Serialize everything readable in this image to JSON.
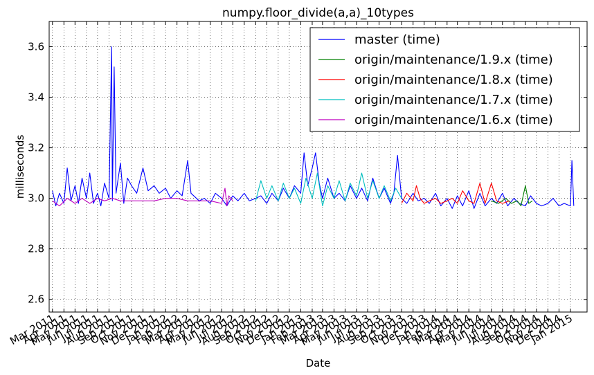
{
  "chart_data": {
    "type": "line",
    "title": "numpy.floor_divide(a,a)_10types",
    "xlabel": "Date",
    "ylabel": "milliseconds",
    "ylim": [
      2.55,
      3.7
    ],
    "yticks": [
      2.6,
      2.8,
      3.0,
      3.2,
      3.4,
      3.6
    ],
    "ytick_labels": [
      "2.6",
      "2.8",
      "3.0",
      "3.2",
      "3.4",
      "3.6"
    ],
    "xlim": [
      "2011-02-20",
      "2015-02-15"
    ],
    "xticks": [
      "2011-03-01",
      "2011-04-01",
      "2011-05-01",
      "2011-06-01",
      "2011-07-01",
      "2011-08-01",
      "2011-09-01",
      "2011-10-01",
      "2011-11-01",
      "2011-12-01",
      "2012-01-01",
      "2012-02-01",
      "2012-03-01",
      "2012-04-01",
      "2012-05-01",
      "2012-06-01",
      "2012-07-01",
      "2012-08-01",
      "2012-09-01",
      "2012-10-01",
      "2012-11-01",
      "2012-12-01",
      "2013-01-01",
      "2013-02-01",
      "2013-03-01",
      "2013-04-01",
      "2013-05-01",
      "2013-06-01",
      "2013-07-01",
      "2013-08-01",
      "2013-09-01",
      "2013-10-01",
      "2013-11-01",
      "2013-12-01",
      "2014-01-01",
      "2014-02-01",
      "2014-03-01",
      "2014-04-01",
      "2014-05-01",
      "2014-06-01",
      "2014-07-01",
      "2014-08-01",
      "2014-09-01",
      "2014-10-01",
      "2014-11-01",
      "2014-12-01",
      "2015-01-01"
    ],
    "xtick_labels": [
      "Mar 2011",
      "Apr 2011",
      "May 2011",
      "Jun 2011",
      "Jul 2011",
      "Aug 2011",
      "Sep 2011",
      "Oct 2011",
      "Nov 2011",
      "Dec 2011",
      "Jan 2012",
      "Feb 2012",
      "Mar 2012",
      "Apr 2012",
      "May 2012",
      "Jun 2012",
      "Jul 2012",
      "Aug 2012",
      "Sep 2012",
      "Oct 2012",
      "Nov 2012",
      "Dec 2012",
      "Jan 2013",
      "Feb 2013",
      "Mar 2013",
      "Apr 2013",
      "May 2013",
      "Jun 2013",
      "Jul 2013",
      "Aug 2013",
      "Sep 2013",
      "Oct 2013",
      "Nov 2013",
      "Dec 2013",
      "Jan 2014",
      "Feb 2014",
      "Mar 2014",
      "Apr 2014",
      "May 2014",
      "Jun 2014",
      "Jul 2014",
      "Aug 2014",
      "Sep 2014",
      "Oct 2014",
      "Nov 2014",
      "Dec 2014",
      "Jan 2015"
    ],
    "grid": true,
    "legend_position": "top-right",
    "series": [
      {
        "name": "master (time)",
        "color": "#0000ff",
        "x": [
          "2011-03-01",
          "2011-03-10",
          "2011-03-20",
          "2011-04-01",
          "2011-04-10",
          "2011-04-20",
          "2011-05-01",
          "2011-05-10",
          "2011-05-20",
          "2011-06-01",
          "2011-06-10",
          "2011-06-20",
          "2011-07-01",
          "2011-07-10",
          "2011-07-20",
          "2011-08-01",
          "2011-08-08",
          "2011-08-10",
          "2011-08-15",
          "2011-08-20",
          "2011-09-01",
          "2011-09-10",
          "2011-09-20",
          "2011-10-01",
          "2011-10-15",
          "2011-11-01",
          "2011-11-15",
          "2011-12-01",
          "2011-12-15",
          "2012-01-01",
          "2012-01-15",
          "2012-02-01",
          "2012-02-15",
          "2012-03-01",
          "2012-03-10",
          "2012-04-01",
          "2012-04-15",
          "2012-05-01",
          "2012-05-15",
          "2012-06-01",
          "2012-06-15",
          "2012-07-01",
          "2012-07-15",
          "2012-08-01",
          "2012-08-15",
          "2012-09-01",
          "2012-09-15",
          "2012-10-01",
          "2012-10-15",
          "2012-11-01",
          "2012-11-15",
          "2012-12-01",
          "2012-12-15",
          "2013-01-01",
          "2013-01-10",
          "2013-01-20",
          "2013-02-01",
          "2013-02-10",
          "2013-02-20",
          "2013-03-01",
          "2013-03-15",
          "2013-04-01",
          "2013-04-15",
          "2013-05-01",
          "2013-05-15",
          "2013-06-01",
          "2013-06-15",
          "2013-07-01",
          "2013-07-15",
          "2013-08-01",
          "2013-08-15",
          "2013-09-01",
          "2013-09-10",
          "2013-09-20",
          "2013-10-01",
          "2013-10-15",
          "2013-11-01",
          "2013-11-15",
          "2013-12-01",
          "2013-12-15",
          "2014-01-01",
          "2014-01-15",
          "2014-02-01",
          "2014-02-15",
          "2014-03-01",
          "2014-03-15",
          "2014-04-01",
          "2014-04-15",
          "2014-05-01",
          "2014-05-15",
          "2014-06-01",
          "2014-06-15",
          "2014-07-01",
          "2014-07-15",
          "2014-08-01",
          "2014-08-15",
          "2014-09-01",
          "2014-09-15",
          "2014-10-01",
          "2014-10-15",
          "2014-11-01",
          "2014-11-15",
          "2014-12-01",
          "2014-12-15",
          "2015-01-01",
          "2015-01-05",
          "2015-01-10"
        ],
        "y": [
          3.03,
          2.97,
          3.02,
          2.98,
          3.12,
          2.99,
          3.05,
          2.98,
          3.08,
          3.0,
          3.1,
          2.98,
          3.02,
          2.97,
          3.06,
          3.0,
          3.6,
          2.99,
          3.52,
          3.02,
          3.14,
          2.98,
          3.08,
          3.05,
          3.02,
          3.12,
          3.03,
          3.05,
          3.02,
          3.04,
          3.0,
          3.03,
          3.01,
          3.15,
          3.02,
          2.99,
          3.0,
          2.98,
          3.02,
          3.0,
          2.97,
          3.01,
          2.99,
          3.02,
          2.99,
          3.0,
          3.01,
          2.98,
          3.02,
          2.99,
          3.04,
          3.0,
          3.05,
          3.02,
          3.18,
          3.05,
          3.12,
          3.18,
          3.06,
          3.0,
          3.08,
          3.0,
          3.02,
          2.99,
          3.05,
          3.0,
          3.04,
          2.99,
          3.08,
          3.0,
          3.04,
          2.98,
          3.02,
          3.17,
          3.0,
          2.98,
          3.02,
          2.99,
          3.0,
          2.98,
          3.02,
          2.97,
          3.0,
          2.96,
          3.01,
          2.97,
          3.03,
          2.96,
          3.02,
          2.97,
          3.0,
          2.98,
          3.02,
          2.97,
          3.0,
          2.98,
          2.97,
          3.01,
          2.98,
          2.97,
          2.98,
          3.0,
          2.97,
          2.98,
          2.97,
          3.15,
          2.97
        ]
      },
      {
        "name": "origin/maintenance/1.9.x (time)",
        "color": "#008000",
        "x": [
          "2014-06-01",
          "2014-06-20",
          "2014-07-10",
          "2014-07-25",
          "2014-08-10",
          "2014-08-20",
          "2014-09-01",
          "2014-09-10",
          "2014-09-20"
        ],
        "y": [
          2.99,
          2.98,
          3.0,
          2.98,
          2.99,
          2.97,
          3.05,
          2.98,
          2.99
        ]
      },
      {
        "name": "origin/maintenance/1.8.x (time)",
        "color": "#ff0000",
        "x": [
          "2013-10-01",
          "2013-10-15",
          "2013-11-01",
          "2013-11-10",
          "2013-11-20",
          "2013-12-01",
          "2013-12-15",
          "2014-01-01",
          "2014-01-15",
          "2014-02-01",
          "2014-02-15",
          "2014-03-01",
          "2014-03-15",
          "2014-04-01",
          "2014-04-15",
          "2014-05-01",
          "2014-05-15",
          "2014-06-01",
          "2014-06-15",
          "2014-07-01",
          "2014-07-20"
        ],
        "y": [
          2.98,
          3.02,
          2.99,
          3.05,
          3.0,
          2.98,
          2.99,
          3.0,
          2.98,
          2.99,
          3.0,
          2.98,
          3.03,
          2.99,
          2.98,
          3.06,
          2.98,
          3.06,
          2.99,
          2.98,
          2.99
        ]
      },
      {
        "name": "origin/maintenance/1.7.x (time)",
        "color": "#00bfbf",
        "x": [
          "2012-09-01",
          "2012-09-15",
          "2012-10-01",
          "2012-10-15",
          "2012-11-01",
          "2012-11-15",
          "2012-12-01",
          "2012-12-15",
          "2013-01-01",
          "2013-01-15",
          "2013-02-01",
          "2013-02-15",
          "2013-03-01",
          "2013-03-15",
          "2013-04-01",
          "2013-04-15",
          "2013-05-01",
          "2013-05-15",
          "2013-06-01",
          "2013-06-15",
          "2013-07-01",
          "2013-07-15",
          "2013-08-01",
          "2013-08-15",
          "2013-09-01",
          "2013-09-15",
          "2013-10-01"
        ],
        "y": [
          2.99,
          3.07,
          3.0,
          3.05,
          2.99,
          3.06,
          3.0,
          3.04,
          2.98,
          3.08,
          3.0,
          3.1,
          2.97,
          3.05,
          3.0,
          3.07,
          2.99,
          3.06,
          3.01,
          3.1,
          3.0,
          3.07,
          3.0,
          3.05,
          2.99,
          3.04,
          3.0
        ]
      },
      {
        "name": "origin/maintenance/1.6.x (time)",
        "color": "#bf00bf",
        "x": [
          "2011-03-01",
          "2011-03-20",
          "2011-04-10",
          "2011-05-01",
          "2011-05-20",
          "2011-06-10",
          "2011-07-01",
          "2011-07-20",
          "2011-08-10",
          "2011-09-01",
          "2011-10-01",
          "2011-11-01",
          "2011-12-01",
          "2012-01-01",
          "2012-02-01",
          "2012-03-01",
          "2012-04-01",
          "2012-05-01",
          "2012-06-01",
          "2012-06-10",
          "2012-06-15",
          "2012-06-20",
          "2012-07-01"
        ],
        "y": [
          2.99,
          2.97,
          3.0,
          2.98,
          3.0,
          2.98,
          3.0,
          2.99,
          3.0,
          2.99,
          2.99,
          2.99,
          2.99,
          3.0,
          3.0,
          2.99,
          2.99,
          2.99,
          2.98,
          3.04,
          2.97,
          3.01,
          2.99
        ]
      }
    ]
  }
}
